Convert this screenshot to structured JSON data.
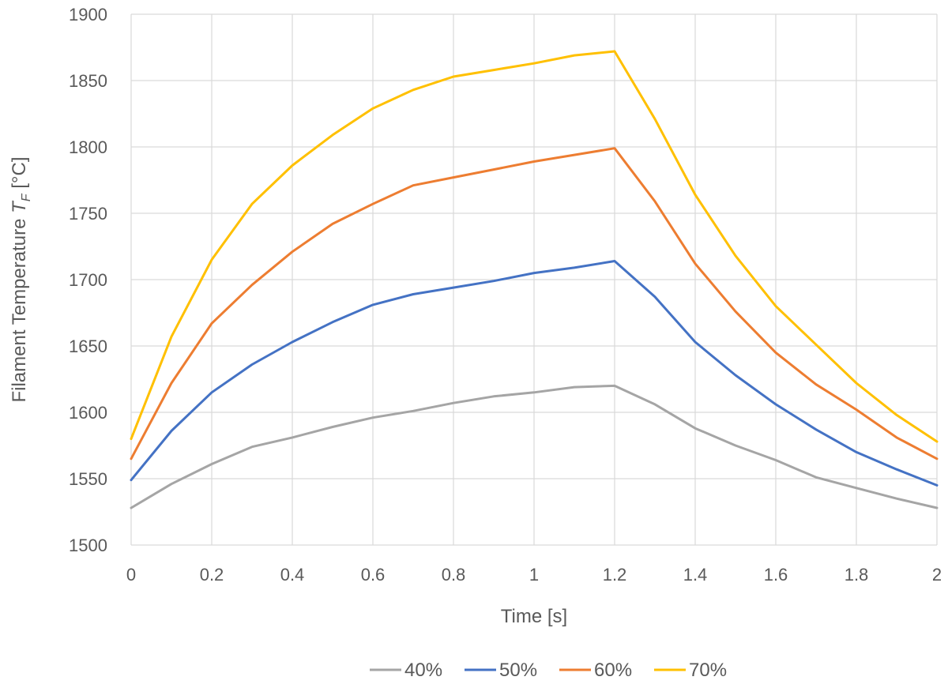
{
  "chart_data": {
    "type": "line",
    "title": "",
    "xlabel": "Time [s]",
    "ylabel": {
      "prefix": "Filament Temperature ",
      "var": "T",
      "sub": "F",
      "unit": " [°C]"
    },
    "xlim": [
      0,
      2
    ],
    "ylim": [
      1500,
      1900
    ],
    "x_ticks": [
      "0",
      "0.2",
      "0.4",
      "0.6",
      "0.8",
      "1",
      "1.2",
      "1.4",
      "1.6",
      "1.8",
      "2"
    ],
    "y_ticks": [
      "1500",
      "1550",
      "1600",
      "1650",
      "1700",
      "1750",
      "1800",
      "1850",
      "1900"
    ],
    "grid": true,
    "legend_position": "bottom",
    "x": [
      0,
      0.1,
      0.2,
      0.3,
      0.4,
      0.5,
      0.6,
      0.7,
      0.8,
      0.9,
      1.0,
      1.1,
      1.2,
      1.3,
      1.4,
      1.5,
      1.6,
      1.7,
      1.8,
      1.9,
      2.0
    ],
    "series": [
      {
        "name": "40%",
        "color": "#a5a5a5",
        "values": [
          1528,
          1546,
          1561,
          1574,
          1581,
          1589,
          1596,
          1601,
          1607,
          1612,
          1615,
          1619,
          1620,
          1606,
          1588,
          1575,
          1564,
          1551,
          1543,
          1535,
          1528
        ]
      },
      {
        "name": "50%",
        "color": "#4472c4",
        "values": [
          1549,
          1586,
          1615,
          1636,
          1653,
          1668,
          1681,
          1689,
          1694,
          1699,
          1705,
          1709,
          1714,
          1687,
          1653,
          1628,
          1606,
          1587,
          1570,
          1557,
          1545
        ]
      },
      {
        "name": "60%",
        "color": "#ed7d31",
        "values": [
          1565,
          1622,
          1667,
          1696,
          1721,
          1742,
          1757,
          1771,
          1777,
          1783,
          1789,
          1794,
          1799,
          1759,
          1712,
          1676,
          1645,
          1621,
          1602,
          1581,
          1565
        ]
      },
      {
        "name": "70%",
        "color": "#ffc000",
        "values": [
          1580,
          1657,
          1715,
          1757,
          1786,
          1809,
          1829,
          1843,
          1853,
          1858,
          1863,
          1869,
          1872,
          1821,
          1764,
          1718,
          1680,
          1651,
          1622,
          1598,
          1578
        ]
      }
    ]
  }
}
